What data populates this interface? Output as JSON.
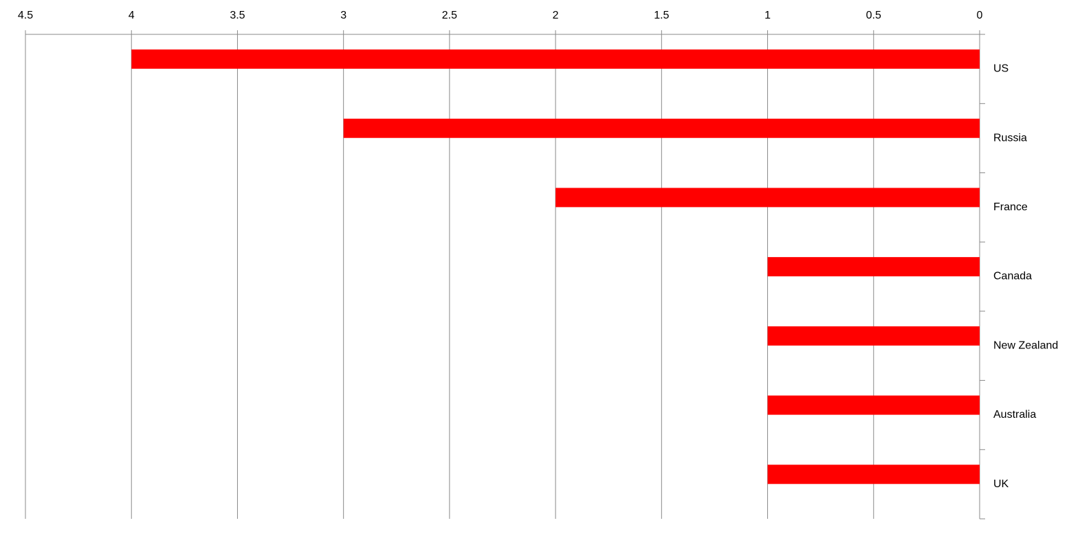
{
  "chart_data": {
    "type": "bar",
    "orientation": "horizontal",
    "x_reversed": true,
    "categories": [
      "US",
      "Russia",
      "France",
      "Canada",
      "New Zealand",
      "Australia",
      "UK"
    ],
    "values": [
      4,
      3,
      2,
      1,
      1,
      1,
      1
    ],
    "color": "#ff0000",
    "xlim": [
      0,
      4.5
    ],
    "xticks": [
      0,
      0.5,
      1,
      1.5,
      2,
      2.5,
      3,
      3.5,
      4,
      4.5
    ],
    "grid": true
  }
}
